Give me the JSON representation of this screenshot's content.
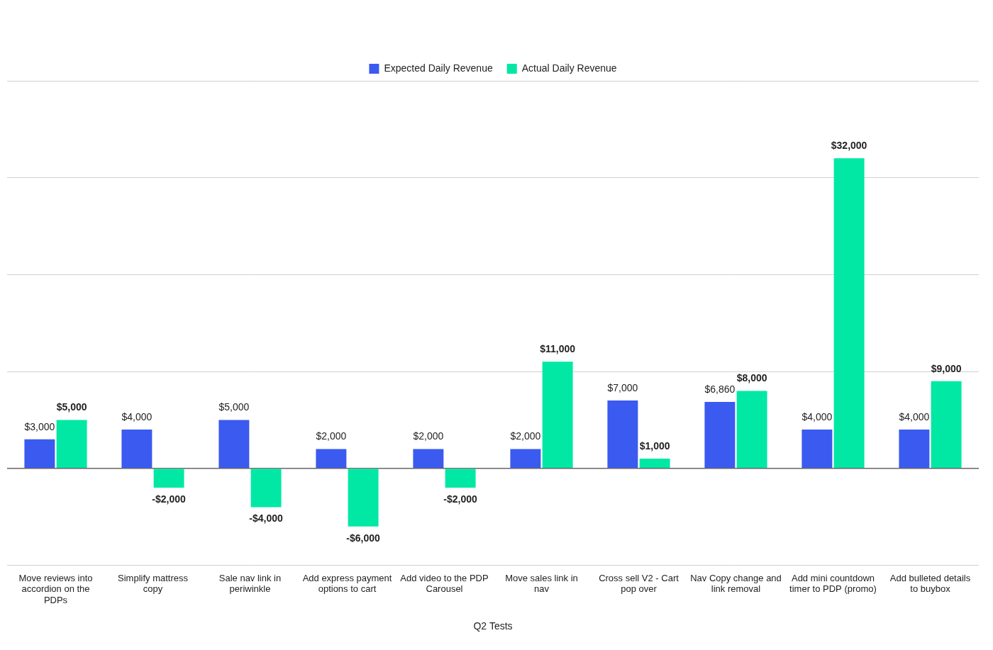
{
  "chart_data": {
    "type": "bar",
    "x_label": "Q2 Tests",
    "categories": [
      "Move reviews into accordion on the PDPs",
      "Simplify mattress copy",
      "Sale nav link in periwinkle",
      "Add express payment options to cart",
      "Add video to the PDP Carousel",
      "Move sales link in nav",
      "Cross sell V2 - Cart pop over",
      "Nav Copy change and link removal",
      "Add mini countdown timer to PDP (promo)",
      "Add bulleted details to buybox"
    ],
    "series": [
      {
        "name": "Expected Daily Revenue",
        "color": "#3a5af0",
        "values": [
          3000,
          4000,
          5000,
          2000,
          2000,
          2000,
          7000,
          6860,
          4000,
          4000
        ],
        "value_labels": [
          "$3,000",
          "$4,000",
          "$5,000",
          "$2,000",
          "$2,000",
          "$2,000",
          "$7,000",
          "$6,860",
          "$4,000",
          "$4,000"
        ]
      },
      {
        "name": "Actual Daily Revenue",
        "color": "#00e8a4",
        "values": [
          5000,
          -2000,
          -4000,
          -6000,
          -2000,
          11000,
          1000,
          8000,
          32000,
          9000
        ],
        "value_labels": [
          "$5,000",
          "-$2,000",
          "-$4,000",
          "-$6,000",
          "-$2,000",
          "$11,000",
          "$1,000",
          "$8,000",
          "$32,000",
          "$9,000"
        ]
      }
    ],
    "ylim": [
      -10000,
      40000
    ],
    "yticks": [
      -10000,
      0,
      10000,
      20000,
      30000,
      40000
    ],
    "grid": true,
    "legend": "top",
    "data_labels": true,
    "tick_labels": "x"
  }
}
